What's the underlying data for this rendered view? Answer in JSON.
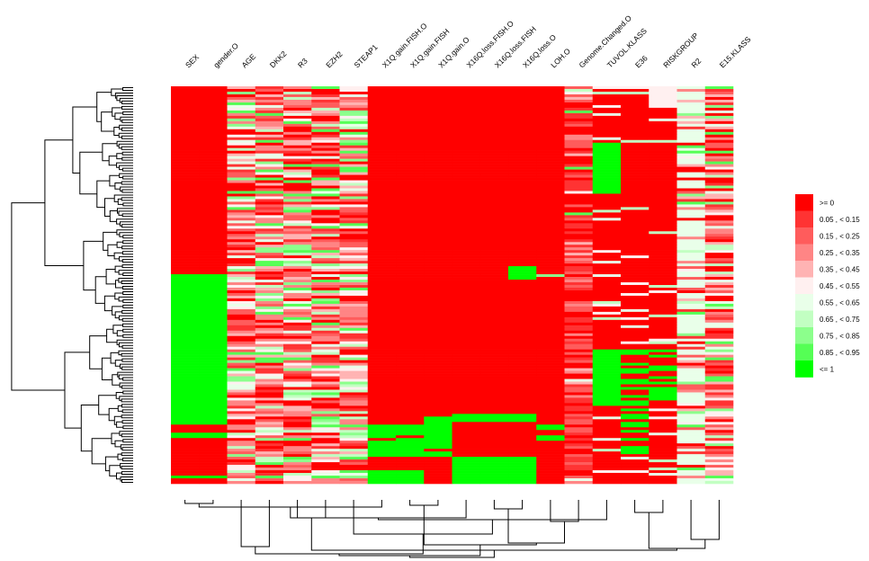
{
  "chart_data": {
    "type": "heatmap",
    "title": "",
    "columns": [
      "SEX",
      "gender.O",
      "AGE",
      "DKK2",
      "R3",
      "EZH2",
      "STEAP1",
      "X1Q.gain.FISH.O",
      "X1Q.gain.FISH",
      "X1Q.gain.O",
      "X16Q.loss.FISH.O",
      "X16Q.loss.FISH",
      "X16Q.loss.O",
      "LOH.O",
      "Genome.Changed.O",
      "TUVOL.KLASS",
      "E36",
      "RISKGROUP",
      "R2",
      "E15.KLASS"
    ],
    "row_count": 148,
    "grid": false,
    "color_scale": {
      "low_color": "#ff0000",
      "high_color": "#00ff00",
      "levels": [
        {
          "label": ">= 0",
          "color": "#ff0000"
        },
        {
          "label": "0.05 , < 0.15",
          "color": "#ff3333"
        },
        {
          "label": "0.15 , < 0.25",
          "color": "#ff5c5c"
        },
        {
          "label": "0.25 , < 0.35",
          "color": "#ff8585"
        },
        {
          "label": "0.35 , < 0.45",
          "color": "#ffb3b3"
        },
        {
          "label": "0.45 , < 0.55",
          "color": "#fff0f0"
        },
        {
          "label": "0.55 , < 0.65",
          "color": "#e9ffe9"
        },
        {
          "label": "0.65 , < 0.75",
          "color": "#c2ffc2"
        },
        {
          "label": "0.75 , < 0.85",
          "color": "#8cff8c"
        },
        {
          "label": "0.85 , < 0.95",
          "color": "#55ff55"
        },
        {
          "label": "<= 1",
          "color": "#00ff00"
        }
      ]
    },
    "legend_position": "right",
    "row_dendrogram": "left",
    "column_dendrogram": "bottom"
  }
}
